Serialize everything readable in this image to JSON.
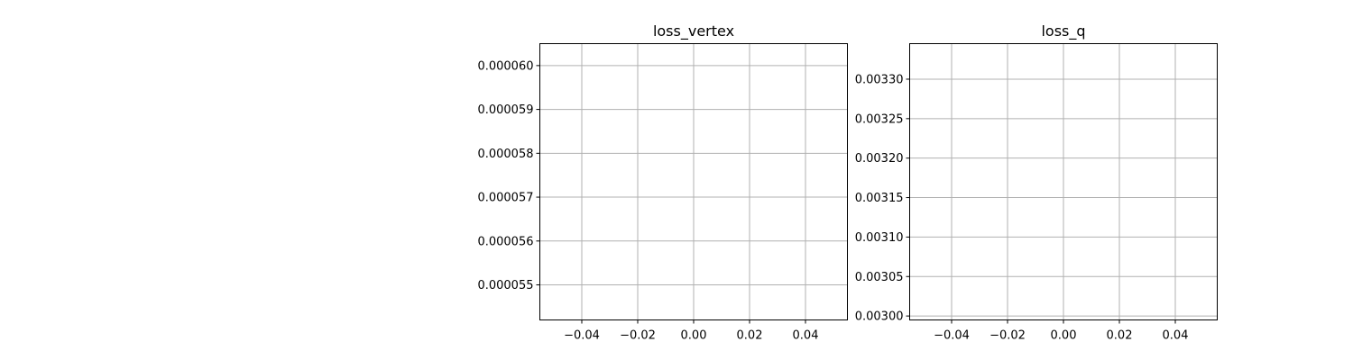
{
  "chart_data": [
    {
      "type": "line",
      "title": "loss_vertex",
      "xlabel": "",
      "ylabel": "",
      "xlim": [
        -0.055,
        0.055
      ],
      "ylim": [
        5.42e-05,
        6.05e-05
      ],
      "xticks": [
        -0.04,
        -0.02,
        0.0,
        0.02,
        0.04
      ],
      "xtick_labels": [
        "−0.04",
        "−0.02",
        "0.00",
        "0.02",
        "0.04"
      ],
      "yticks": [
        5.5e-05,
        5.6e-05,
        5.7e-05,
        5.8e-05,
        5.9e-05,
        6e-05
      ],
      "ytick_labels": [
        "0.000055",
        "0.000056",
        "0.000057",
        "0.000058",
        "0.000059",
        "0.000060"
      ],
      "grid": true,
      "series": []
    },
    {
      "type": "line",
      "title": "loss_q",
      "xlabel": "",
      "ylabel": "",
      "xlim": [
        -0.055,
        0.055
      ],
      "ylim": [
        0.002995,
        0.003345
      ],
      "xticks": [
        -0.04,
        -0.02,
        0.0,
        0.02,
        0.04
      ],
      "xtick_labels": [
        "−0.04",
        "−0.02",
        "0.00",
        "0.02",
        "0.04"
      ],
      "yticks": [
        0.003,
        0.00305,
        0.0031,
        0.00315,
        0.0032,
        0.00325,
        0.0033
      ],
      "ytick_labels": [
        "0.00300",
        "0.00305",
        "0.00310",
        "0.00315",
        "0.00320",
        "0.00325",
        "0.00330"
      ],
      "grid": true,
      "series": []
    }
  ],
  "colors": {
    "grid": "#b0b0b0",
    "axes": "#000000",
    "background": "#ffffff"
  }
}
